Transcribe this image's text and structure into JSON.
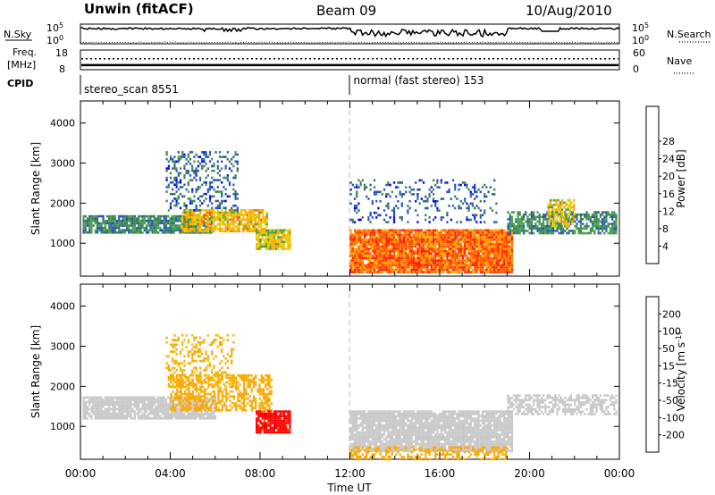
{
  "header": {
    "station": "Unwin (fitACF)",
    "beam": "Beam 09",
    "date": "10/Aug/2010"
  },
  "nsky_panel": {
    "left_label": "N.Sky",
    "right_label": "N.Search",
    "left_ticks": [
      "10^5",
      "10^0"
    ],
    "right_ticks": [
      "10^5",
      "10^0"
    ]
  },
  "freq_panel": {
    "left_label_line1": "Freq.",
    "left_label_line2": "[MHz]",
    "right_label": "Nave",
    "left_ticks": [
      "18",
      "8"
    ],
    "right_ticks": [
      "60",
      "0"
    ],
    "freq_mhz": 9.7,
    "nave_scale": 0.12
  },
  "cpid": {
    "label": "CPID",
    "segments": [
      {
        "start_hour": 0,
        "text": "stereo_scan 8551"
      },
      {
        "start_hour": 12,
        "text": "normal (fast stereo) 153"
      }
    ]
  },
  "chart_data": [
    {
      "type": "heatmap",
      "quantity": "power",
      "ylabel": "Slant Range [km]",
      "xlim_hours": [
        0,
        24
      ],
      "ylim_km": [
        180,
        4550
      ],
      "yticks": [
        1000,
        2000,
        3000,
        4000
      ],
      "colorbar_label": "Power [dB]",
      "colorbar_ticks": [
        "4",
        "8",
        "12",
        "16",
        "20",
        "24",
        "28"
      ],
      "colorbar_colors": [
        "#0000ff",
        "#2050c8",
        "#3a7a5a",
        "#46a046",
        "#e8d000",
        "#ffa500",
        "#ff6000",
        "#ff2000",
        "#ff0000"
      ],
      "regions": [
        {
          "name": "band 00-06h",
          "t": [
            0.1,
            5.8
          ],
          "r": [
            1250,
            1700
          ],
          "power": 9,
          "density": 0.85
        },
        {
          "name": "core 04-08h",
          "t": [
            4.5,
            8.3
          ],
          "r": [
            1300,
            1850
          ],
          "power": 18,
          "density": 0.8
        },
        {
          "name": "upper 04-07h",
          "t": [
            3.8,
            7.0
          ],
          "r": [
            1800,
            3300
          ],
          "power": 6,
          "density": 0.3
        },
        {
          "name": "patch 08-09h",
          "t": [
            7.8,
            9.3
          ],
          "r": [
            850,
            1350
          ],
          "power": 16,
          "density": 0.9
        },
        {
          "name": "main 12-19h",
          "t": [
            12.0,
            19.2
          ],
          "r": [
            250,
            1350
          ],
          "power": 24,
          "density": 0.95
        },
        {
          "name": "upper 12-19h",
          "t": [
            12.0,
            18.5
          ],
          "r": [
            1500,
            2600
          ],
          "power": 5,
          "density": 0.2
        },
        {
          "name": "band 20-24h",
          "t": [
            19.0,
            23.9
          ],
          "r": [
            1250,
            1800
          ],
          "power": 9,
          "density": 0.7
        },
        {
          "name": "arc 21h",
          "t": [
            20.8,
            22.0
          ],
          "r": [
            1450,
            2100
          ],
          "power": 17,
          "density": 0.7
        }
      ]
    },
    {
      "type": "heatmap",
      "quantity": "velocity",
      "ylabel": "Slant Range [km]",
      "xlabel": "Time UT",
      "xlim_hours": [
        0,
        24
      ],
      "ylim_km": [
        180,
        4550
      ],
      "yticks": [
        1000,
        2000,
        3000,
        4000
      ],
      "xticks": [
        "00:00",
        "04:00",
        "08:00",
        "12:00",
        "16:00",
        "20:00",
        "00:00"
      ],
      "colorbar_label": "Velocity [m s^-1]",
      "colorbar_ticks": [
        "200",
        "100",
        "50",
        "15",
        "-15",
        "-50",
        "-100",
        "-200"
      ],
      "colorbar_colors": [
        "#2030c0",
        "#3a7a5a",
        "#46a046",
        "#7cd24c",
        "#c8c8c8",
        "#e8c000",
        "#ffa500",
        "#ff6000",
        "#ff0000"
      ],
      "regions": [
        {
          "name": "ground scatter 00-06h",
          "t": [
            0.1,
            6.0
          ],
          "r": [
            1200,
            1750
          ],
          "vel": 0,
          "density": 0.9
        },
        {
          "name": "slow 04-08h",
          "t": [
            4.0,
            8.5
          ],
          "r": [
            1400,
            2300
          ],
          "vel": -40,
          "density": 0.6
        },
        {
          "name": "upper 04-07h",
          "t": [
            3.8,
            6.8
          ],
          "r": [
            2000,
            3300
          ],
          "vel": -35,
          "density": 0.3
        },
        {
          "name": "fast 08-09h",
          "t": [
            7.8,
            9.3
          ],
          "r": [
            850,
            1400
          ],
          "vel": -200,
          "density": 0.9
        },
        {
          "name": "ground scatter 12-19h",
          "t": [
            12.0,
            19.2
          ],
          "r": [
            400,
            1400
          ],
          "vel": 0,
          "density": 0.92
        },
        {
          "name": "low 12-19h",
          "t": [
            12.0,
            19.0
          ],
          "r": [
            200,
            500
          ],
          "vel": -40,
          "density": 0.5
        },
        {
          "name": "band 20-24h",
          "t": [
            19.0,
            23.9
          ],
          "r": [
            1300,
            1800
          ],
          "vel": 0,
          "density": 0.6
        }
      ]
    }
  ]
}
